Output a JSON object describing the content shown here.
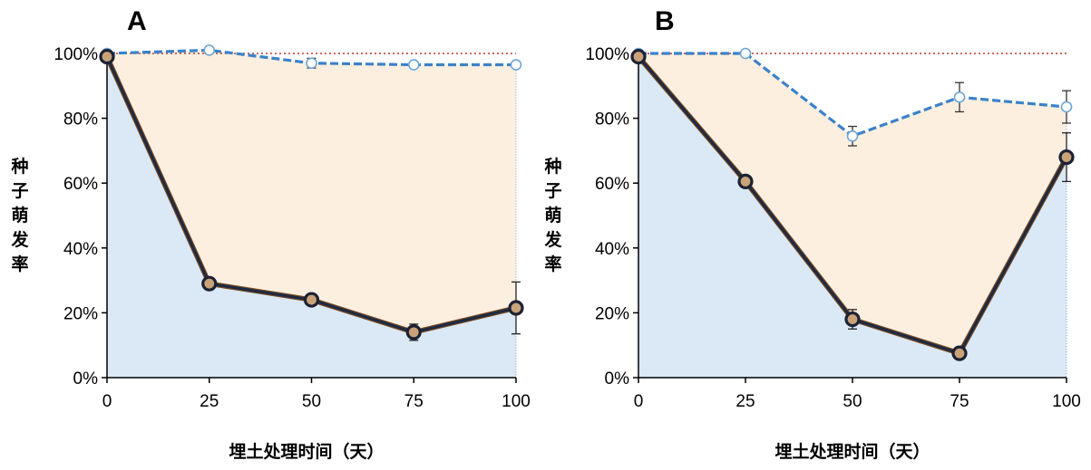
{
  "chart_data": [
    {
      "type": "line",
      "panel_label": "A",
      "xlabel": "埋土处理时间（天）",
      "ylabel": "种子萌发率",
      "x": [
        0,
        25,
        50,
        75,
        100
      ],
      "x_ticks": [
        "0",
        "25",
        "50",
        "75",
        "100"
      ],
      "y_ticks": [
        "0%",
        "20%",
        "40%",
        "60%",
        "80%",
        "100%"
      ],
      "xlim": [
        0,
        100
      ],
      "ylim": [
        0,
        100
      ],
      "reference_line": 100,
      "series": [
        {
          "values": [
            100,
            101,
            97,
            96.5,
            96.5
          ],
          "errors": [
            0,
            0,
            1.5,
            0.5,
            0.5
          ],
          "style": "dashed",
          "color": "#3b82c9",
          "marker": "open-circle"
        },
        {
          "values": [
            99,
            29,
            24,
            14,
            21.5
          ],
          "errors": [
            0,
            1,
            1.5,
            2.5,
            8
          ],
          "style": "solid",
          "color": "#1f2a44",
          "marker": "open-circle"
        }
      ],
      "colors": {
        "upper_fill": "#fcefe0",
        "lower_fill": "#dbe9f6",
        "reference": "#c0392b"
      }
    },
    {
      "type": "line",
      "panel_label": "B",
      "xlabel": "埋土处理时间（天）",
      "ylabel": "种子萌发率",
      "x": [
        0,
        25,
        50,
        75,
        100
      ],
      "x_ticks": [
        "0",
        "25",
        "50",
        "75",
        "100"
      ],
      "y_ticks": [
        "0%",
        "20%",
        "40%",
        "60%",
        "80%",
        "100%"
      ],
      "xlim": [
        0,
        100
      ],
      "ylim": [
        0,
        100
      ],
      "reference_line": 100,
      "series": [
        {
          "values": [
            100,
            100,
            74.5,
            86.5,
            83.5
          ],
          "errors": [
            0,
            0,
            3,
            4.5,
            5
          ],
          "style": "dashed",
          "color": "#3b82c9",
          "marker": "open-circle"
        },
        {
          "values": [
            99,
            60.5,
            18,
            7.5,
            68
          ],
          "errors": [
            0,
            1.5,
            3,
            1,
            7.5
          ],
          "style": "solid",
          "color": "#1f2a44",
          "marker": "open-circle"
        }
      ],
      "colors": {
        "upper_fill": "#fcefe0",
        "lower_fill": "#dbe9f6",
        "reference": "#c0392b"
      }
    }
  ]
}
